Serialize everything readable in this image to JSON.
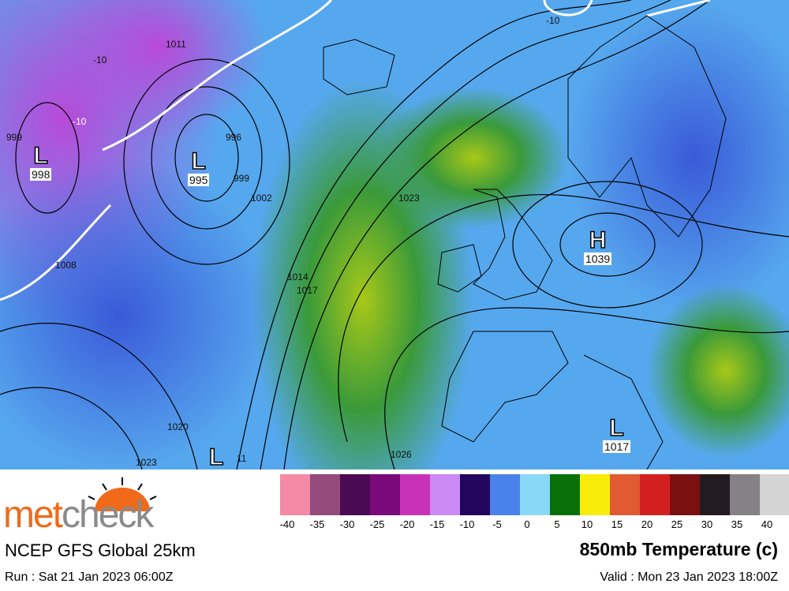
{
  "map": {
    "systems": [
      {
        "type": "L",
        "value": "998"
      },
      {
        "type": "L",
        "value": "995"
      },
      {
        "type": "H",
        "value": "1039"
      },
      {
        "type": "L",
        "value": "1017"
      },
      {
        "type": "L",
        "value": ""
      }
    ],
    "isobar_labels": [
      "1011",
      "-10",
      "-10",
      "-10",
      "999",
      "996",
      "999",
      "1002",
      "1008",
      "1014",
      "1017",
      "1023",
      "1020",
      "1023",
      "1026",
      "11"
    ]
  },
  "legend": {
    "colors": [
      "#f48aa6",
      "#944a7a",
      "#4a0a54",
      "#7a0a7a",
      "#c832b8",
      "#cc8af4",
      "#22065e",
      "#4a82ec",
      "#8ad8f8",
      "#087008",
      "#f8ec0a",
      "#e05a32",
      "#d22020",
      "#7a1010",
      "#221c22",
      "#848284",
      "#d4d4d4"
    ],
    "labels": [
      "-40",
      "-35",
      "-30",
      "-25",
      "-20",
      "-15",
      "-10",
      "-5",
      "0",
      "5",
      "10",
      "15",
      "20",
      "25",
      "30",
      "35",
      "40"
    ]
  },
  "logo": {
    "part1": "met",
    "part2": "check"
  },
  "model": "NCEP GFS Global 25km",
  "run": "Run : Sat 21 Jan 2023 06:00Z",
  "title": "850mb Temperature (c)",
  "valid": "Valid : Mon 23 Jan 2023 18:00Z"
}
